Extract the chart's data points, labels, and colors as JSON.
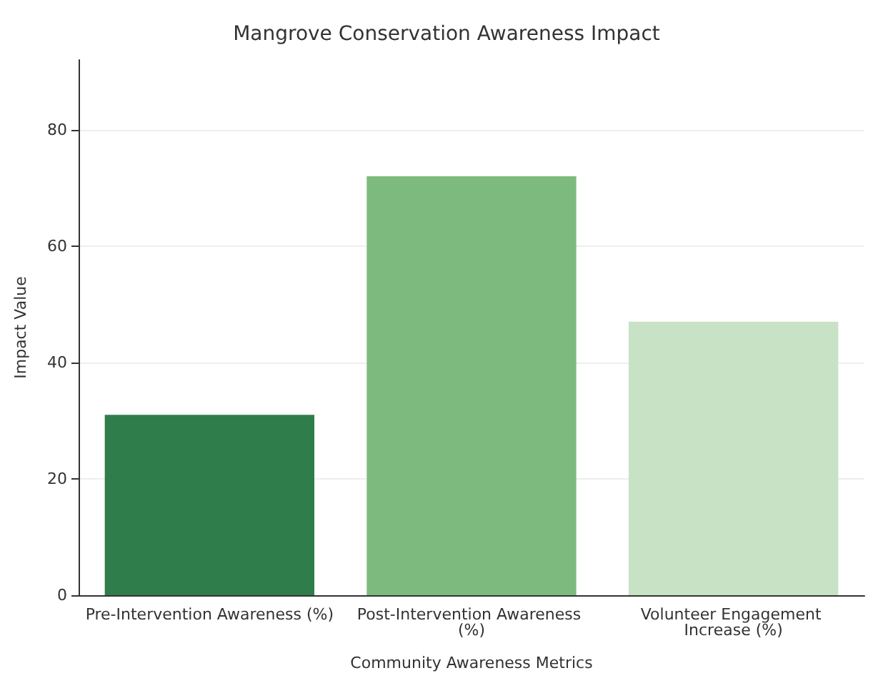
{
  "chart_data": {
    "type": "bar",
    "title": "Mangrove Conservation Awareness Impact",
    "xlabel": "Community Awareness Metrics",
    "ylabel": "Impact Value",
    "categories": [
      "Pre-Intervention Awareness (%)",
      "Post-Intervention Awareness (%)",
      "Volunteer Engagement Increase (%)"
    ],
    "values": [
      31,
      72,
      47
    ],
    "colors": [
      "#2e7d4a",
      "#7dba7d",
      "#c7e2c4"
    ],
    "ylim": [
      0,
      92
    ],
    "yticks": [
      0,
      20,
      40,
      60,
      80
    ],
    "grid": "y"
  }
}
